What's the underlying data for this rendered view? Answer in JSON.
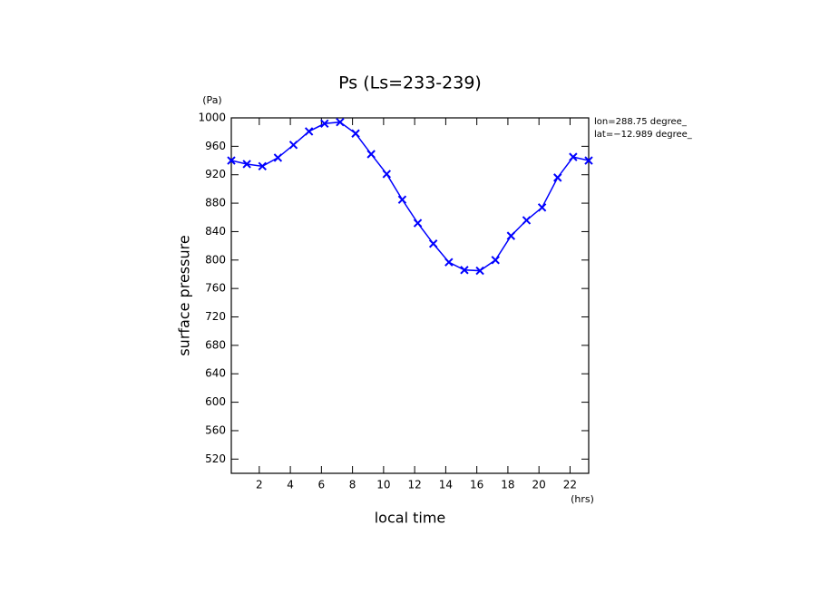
{
  "chart_data": {
    "type": "line",
    "title": "Ps (Ls=233-239)",
    "y_unit": "(Pa)",
    "x_unit": "(hrs)",
    "y_label": "surface pressure",
    "x_label": "local time",
    "annotations": [
      "lon=288.75 degree_",
      "lat=−12.989 degree_"
    ],
    "x": [
      0.2,
      1.2,
      2.2,
      3.2,
      4.2,
      5.2,
      6.2,
      7.2,
      8.2,
      9.2,
      10.2,
      11.2,
      12.2,
      13.2,
      14.2,
      15.2,
      16.2,
      17.2,
      18.2,
      19.2,
      20.2,
      21.2,
      22.2,
      23.2
    ],
    "series": [
      {
        "color": "#0000ff",
        "values": [
          940,
          935,
          932,
          944,
          962,
          981,
          992,
          994,
          978,
          949,
          921,
          885,
          852,
          823,
          797,
          786,
          785,
          800,
          834,
          856,
          874,
          916,
          945,
          940
        ]
      }
    ],
    "xlim": [
      0.2,
      23.2
    ],
    "xticks": [
      2,
      4,
      6,
      8,
      10,
      12,
      14,
      16,
      18,
      20,
      22
    ],
    "ylim": [
      500,
      1000
    ],
    "yticks": [
      520,
      560,
      600,
      640,
      680,
      720,
      760,
      800,
      840,
      880,
      920,
      960,
      1000
    ]
  }
}
